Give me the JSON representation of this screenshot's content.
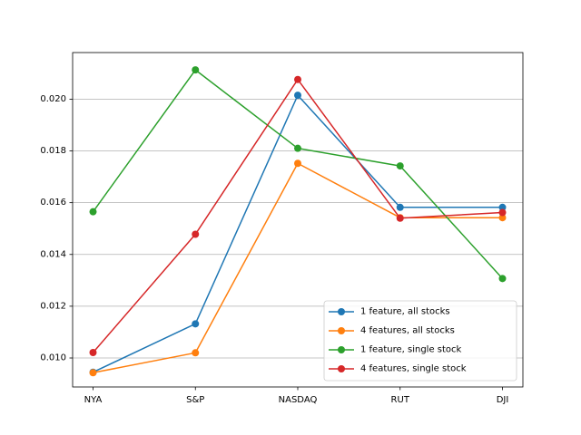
{
  "chart_data": {
    "type": "line",
    "categories": [
      "NYA",
      "S&P",
      "NASDAQ",
      "RUT",
      "DJI"
    ],
    "series": [
      {
        "name": "1 feature, all stocks",
        "color": "#1f77b4",
        "values": [
          0.00945,
          0.01132,
          0.02015,
          0.01582,
          0.01582
        ]
      },
      {
        "name": "4 features, all stocks",
        "color": "#ff7f0e",
        "values": [
          0.00943,
          0.0102,
          0.01752,
          0.01542,
          0.01542
        ]
      },
      {
        "name": "1 feature, single stock",
        "color": "#2ca02c",
        "values": [
          0.01565,
          0.02113,
          0.0181,
          0.01742,
          0.01307
        ]
      },
      {
        "name": "4 features, single stock",
        "color": "#d62728",
        "values": [
          0.01021,
          0.01478,
          0.02076,
          0.0154,
          0.01562
        ]
      }
    ],
    "title": "",
    "xlabel": "",
    "ylabel": "",
    "ylim": [
      0.00888,
      0.0218
    ],
    "yticks": [
      0.01,
      0.012,
      0.014,
      0.016,
      0.018,
      0.02
    ],
    "ytick_labels": [
      "0.010",
      "0.012",
      "0.014",
      "0.016",
      "0.018",
      "0.020"
    ],
    "grid": "y-axis horizontal lines",
    "legend_position": "lower-right"
  }
}
